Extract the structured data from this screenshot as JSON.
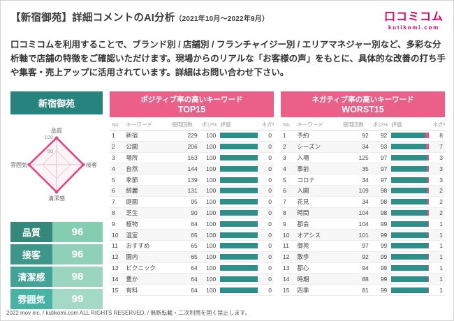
{
  "page": {
    "title": "【新宿御苑】詳細コメントのAI分析",
    "period": "（2021年10月～2022年9月）",
    "footer": "2022 mov inc. / kutikomi.com ALL RIGHTS RESERVED. / 無断転載・二次利用を固く禁止します。"
  },
  "logo": {
    "text": "口コミコム",
    "domain": "kutikomi.com",
    "color": "#e50064"
  },
  "intro": "口コミコムを利用することで、ブランド別 / 店舗別 / フランチャイジー別 / エリアマネジャー別など、多彩な分析軸で店舗の特徴をご確認いただけます。現場からのリアルな「お客様の声」をもとに、具体的な改善の打ち手や集客・売上アップに活用されています。詳細はお問い合わせ下さい。",
  "store_panel": {
    "title": "新宿御苑",
    "scores": [
      {
        "label": "品質",
        "value": 96
      },
      {
        "label": "接客",
        "value": 96
      },
      {
        "label": "清潔感",
        "value": 98
      },
      {
        "label": "雰囲気",
        "value": 99
      }
    ]
  },
  "radar": {
    "axes": [
      "品質",
      "接客",
      "清潔感",
      "雰囲気"
    ],
    "values": [
      96,
      96,
      98,
      99
    ],
    "max": 100,
    "ticks": [
      100,
      50
    ],
    "line_color": "#ee3e7d"
  },
  "colors": {
    "teal": "#2e8e88",
    "pink_header": "#ea6088",
    "negative_pink": "#e9537f",
    "store_header_teal": "#27837d"
  },
  "positive_table": {
    "title_line1": "ポジティブ率の高いキーワード",
    "title_line2": "TOP15",
    "columns": [
      "No.",
      "キーワード",
      "使用回数",
      "ポジ%",
      "評価",
      "ネガ%"
    ],
    "rows": [
      {
        "no": 1,
        "keyword": "新宿",
        "count": 229,
        "pos": 100,
        "neg": 0
      },
      {
        "no": 2,
        "keyword": "公園",
        "count": 206,
        "pos": 100,
        "neg": 0
      },
      {
        "no": 3,
        "keyword": "場所",
        "count": 163,
        "pos": 100,
        "neg": 0
      },
      {
        "no": 4,
        "keyword": "自然",
        "count": 144,
        "pos": 100,
        "neg": 0
      },
      {
        "no": 5,
        "keyword": "季節",
        "count": 139,
        "pos": 100,
        "neg": 0
      },
      {
        "no": 6,
        "keyword": "綺麗",
        "count": 131,
        "pos": 100,
        "neg": 0
      },
      {
        "no": 7,
        "keyword": "庭園",
        "count": 95,
        "pos": 100,
        "neg": 0
      },
      {
        "no": 8,
        "keyword": "芝生",
        "count": 90,
        "pos": 100,
        "neg": 0
      },
      {
        "no": 9,
        "keyword": "植物",
        "count": 84,
        "pos": 100,
        "neg": 0
      },
      {
        "no": 10,
        "keyword": "温室",
        "count": 65,
        "pos": 100,
        "neg": 0
      },
      {
        "no": 11,
        "keyword": "おすすめ",
        "count": 65,
        "pos": 100,
        "neg": 0
      },
      {
        "no": 12,
        "keyword": "園内",
        "count": 65,
        "pos": 100,
        "neg": 0
      },
      {
        "no": 13,
        "keyword": "ピクニック",
        "count": 64,
        "pos": 100,
        "neg": 0
      },
      {
        "no": 14,
        "keyword": "豊か",
        "count": 64,
        "pos": 100,
        "neg": 0
      },
      {
        "no": 15,
        "keyword": "有料",
        "count": 64,
        "pos": 100,
        "neg": 0
      }
    ]
  },
  "negative_table": {
    "title_line1": "ネガティブ率の高いキーワード",
    "title_line2": "WORST15",
    "columns": [
      "No.",
      "キーワード",
      "使用回数",
      "ポジ%",
      "評価",
      "ネガ%"
    ],
    "rows": [
      {
        "no": 1,
        "keyword": "予約",
        "count": 92,
        "pos": 92,
        "neg": 8
      },
      {
        "no": 2,
        "keyword": "シーズン",
        "count": 34,
        "pos": 93,
        "neg": 7
      },
      {
        "no": 3,
        "keyword": "入場",
        "count": 125,
        "pos": 97,
        "neg": 3
      },
      {
        "no": 4,
        "keyword": "事前",
        "count": 35,
        "pos": 97,
        "neg": 3
      },
      {
        "no": 5,
        "keyword": "コロナ",
        "count": 34,
        "pos": 97,
        "neg": 3
      },
      {
        "no": 6,
        "keyword": "入園",
        "count": 109,
        "pos": 98,
        "neg": 2
      },
      {
        "no": 7,
        "keyword": "花見",
        "count": 34,
        "pos": 98,
        "neg": 2
      },
      {
        "no": 8,
        "keyword": "時間",
        "count": 104,
        "pos": 98,
        "neg": 2
      },
      {
        "no": 9,
        "keyword": "都会",
        "count": 104,
        "pos": 99,
        "neg": 1
      },
      {
        "no": 10,
        "keyword": "オアシス",
        "count": 101,
        "pos": 99,
        "neg": 1
      },
      {
        "no": 11,
        "keyword": "御苑",
        "count": 97,
        "pos": 99,
        "neg": 1
      },
      {
        "no": 12,
        "keyword": "散歩",
        "count": 92,
        "pos": 99,
        "neg": 1
      },
      {
        "no": 13,
        "keyword": "都心",
        "count": 94,
        "pos": 99,
        "neg": 1
      },
      {
        "no": 14,
        "keyword": "時期",
        "count": 88,
        "pos": 99,
        "neg": 1
      },
      {
        "no": 15,
        "keyword": "四季",
        "count": 81,
        "pos": 99,
        "neg": 1
      }
    ]
  }
}
